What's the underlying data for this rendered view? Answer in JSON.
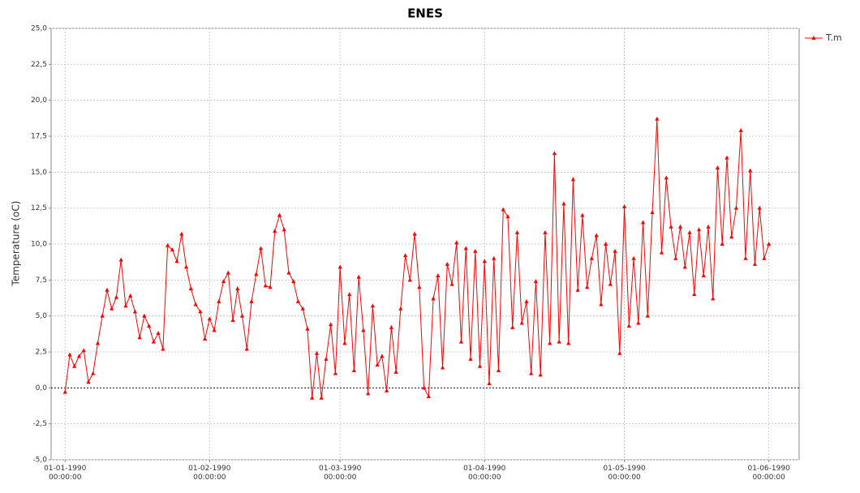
{
  "chart_data": {
    "type": "line",
    "title": "ENES",
    "ylabel": "Temperature (oC)",
    "x": [
      0,
      1,
      2,
      3,
      4,
      5,
      6,
      7,
      8,
      9,
      10,
      11,
      12,
      13,
      14,
      15,
      16,
      17,
      18,
      19,
      20,
      21,
      22,
      23,
      24,
      25,
      26,
      27,
      28,
      29,
      30,
      31,
      32,
      33,
      34,
      35,
      36,
      37,
      38,
      39,
      40,
      41,
      42,
      43,
      44,
      45,
      46,
      47,
      48,
      49,
      50,
      51,
      52,
      53,
      54,
      55,
      56,
      57,
      58,
      59,
      60,
      61,
      62,
      63,
      64,
      65,
      66,
      67,
      68,
      69,
      70,
      71,
      72,
      73,
      74,
      75,
      76,
      77,
      78,
      79,
      80,
      81,
      82,
      83,
      84,
      85,
      86,
      87,
      88,
      89,
      90,
      91,
      92,
      93,
      94,
      95,
      96,
      97,
      98,
      99,
      100,
      101,
      102,
      103,
      104,
      105,
      106,
      107,
      108,
      109,
      110,
      111,
      112,
      113,
      114,
      115,
      116,
      117,
      118,
      119,
      120,
      121,
      122,
      123,
      124,
      125,
      126,
      127,
      128,
      129,
      130,
      131,
      132,
      133,
      134,
      135,
      136,
      137,
      138,
      139,
      140,
      141,
      142,
      143,
      144,
      145,
      146,
      147,
      148,
      149,
      150,
      151
    ],
    "series": [
      {
        "name": "T.m",
        "color": "#ff0000",
        "values": [
          -0.3,
          2.3,
          1.5,
          2.2,
          2.6,
          0.4,
          1.0,
          3.1,
          5.0,
          6.8,
          5.5,
          6.3,
          8.9,
          5.7,
          6.4,
          5.3,
          3.5,
          5.0,
          4.3,
          3.2,
          3.8,
          2.7,
          9.9,
          9.6,
          8.8,
          10.7,
          8.4,
          6.9,
          5.8,
          5.3,
          3.4,
          4.8,
          4.0,
          6.0,
          7.4,
          8.0,
          4.7,
          6.9,
          5.0,
          2.7,
          6.0,
          7.9,
          9.7,
          7.1,
          7.0,
          10.9,
          12.0,
          11.0,
          8.0,
          7.4,
          6.0,
          5.5,
          4.1,
          -0.7,
          2.4,
          -0.7,
          2.0,
          4.4,
          1.0,
          8.4,
          3.1,
          6.5,
          1.2,
          7.7,
          4.0,
          -0.4,
          5.7,
          1.6,
          2.2,
          -0.2,
          4.2,
          1.1,
          5.5,
          9.2,
          7.5,
          10.7,
          7.0,
          0.0,
          -0.6,
          6.2,
          7.8,
          1.4,
          8.6,
          7.2,
          10.1,
          3.2,
          9.7,
          2.0,
          9.5,
          1.5,
          8.8,
          0.3,
          9.0,
          1.2,
          12.4,
          11.9,
          4.2,
          10.8,
          4.5,
          6.0,
          1.0,
          7.4,
          0.9,
          10.8,
          3.1,
          16.3,
          3.2,
          12.8,
          3.1,
          14.5,
          6.8,
          12.0,
          7.0,
          9.0,
          10.6,
          5.8,
          10.0,
          7.2,
          9.5,
          2.4,
          12.6,
          4.3,
          9.0,
          4.5,
          11.5,
          5.0,
          12.2,
          18.7,
          9.4,
          14.6,
          11.2,
          9.0,
          11.2,
          8.4,
          10.8,
          6.5,
          11.0,
          7.8,
          11.2,
          6.2,
          15.3,
          10.0,
          16.0,
          10.5,
          12.5,
          17.9,
          9.0,
          15.1,
          8.6,
          12.5,
          9.0,
          10.0
        ]
      }
    ],
    "xlim": [
      -3,
      157.5
    ],
    "xticks": [
      {
        "value": 0,
        "label": "01-01-1990 00:00:00"
      },
      {
        "value": 31,
        "label": "01-02-1990 00:00:00"
      },
      {
        "value": 59,
        "label": "01-03-1990 00:00:00"
      },
      {
        "value": 90,
        "label": "01-04-1990 00:00:00"
      },
      {
        "value": 120,
        "label": "01-05-1990 00:00:00"
      },
      {
        "value": 151,
        "label": "01-06-1990 00:00:00"
      }
    ],
    "ylim": [
      -5,
      25
    ],
    "yticks": [
      {
        "value": -5,
        "label": "-5,0"
      },
      {
        "value": -2.5,
        "label": "-2,5"
      },
      {
        "value": 0,
        "label": "0,0"
      },
      {
        "value": 2.5,
        "label": "2,5"
      },
      {
        "value": 5,
        "label": "5,0"
      },
      {
        "value": 7.5,
        "label": "7,5"
      },
      {
        "value": 10,
        "label": "10,0"
      },
      {
        "value": 12.5,
        "label": "12,5"
      },
      {
        "value": 15,
        "label": "15,0"
      },
      {
        "value": 17.5,
        "label": "17,5"
      },
      {
        "value": 20,
        "label": "20,0"
      },
      {
        "value": 22.5,
        "label": "22,5"
      },
      {
        "value": 25,
        "label": "25,0"
      }
    ],
    "grid": true,
    "zero_line_color": "#0000aa",
    "legend": "right"
  }
}
